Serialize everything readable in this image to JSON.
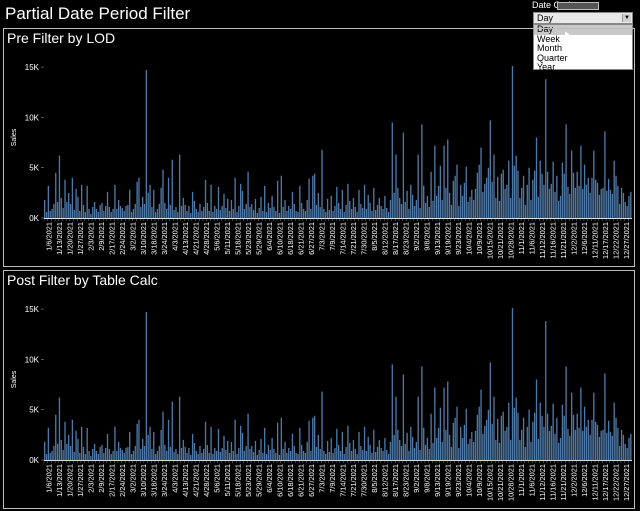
{
  "title": "Partial Date Period Filter",
  "date_granularity": {
    "label": "Date Grain",
    "selected": "Day",
    "options": [
      "Day",
      "Week",
      "Month",
      "Quarter",
      "Year"
    ]
  },
  "colors": {
    "bar": "#4e79a7",
    "background": "#000000",
    "text": "#ffffff"
  },
  "chart_data": [
    {
      "type": "bar",
      "title": "Pre Filter by LOD",
      "ylabel": "Sales",
      "ylim": [
        0,
        16000
      ],
      "yticks": [
        "0K",
        "5K",
        "10K",
        "15K"
      ],
      "x_tick_labels": [
        "1/6/2021",
        "1/13/2021",
        "1/20/2021",
        "1/27/2021",
        "2/3/2021",
        "2/9/2021",
        "2/17/2021",
        "2/24/2021",
        "3/2/2021",
        "3/10/2021",
        "3/18/2021",
        "3/24/2021",
        "4/3/2021",
        "4/13/2021",
        "4/21/2021",
        "4/28/2021",
        "5/6/2021",
        "5/11/2021",
        "5/18/2021",
        "5/23/2021",
        "5/29/2021",
        "6/4/2021",
        "6/10/2021",
        "6/18/2021",
        "6/21/2021",
        "6/27/2021",
        "7/3/2021",
        "7/9/2021",
        "7/14/2021",
        "7/21/2021",
        "7/30/2021",
        "8/5/2021",
        "8/12/2021",
        "8/17/2021",
        "8/23/2021",
        "9/2/2021",
        "9/8/2021",
        "9/13/2021",
        "9/19/2021",
        "9/23/2021",
        "10/4/2021",
        "10/9/2021",
        "10/15/2021",
        "10/21/2021",
        "10/28/2021",
        "11/1/2021",
        "11/6/2021",
        "11/12/2021",
        "11/16/2021",
        "11/21/2021",
        "12/2/2021",
        "12/6/2021",
        "12/11/2021",
        "12/17/2021",
        "12/22/2021",
        "12/27/2021"
      ],
      "values": [
        1800,
        600,
        3200,
        700,
        900,
        1400,
        4500,
        1600,
        6200,
        2000,
        1000,
        3800,
        1600,
        2500,
        1400,
        4000,
        800,
        2900,
        2100,
        700,
        3300,
        1300,
        600,
        3200,
        900,
        400,
        1100,
        1600,
        900,
        600,
        1300,
        1500,
        700,
        1200,
        2600,
        1100,
        600,
        900,
        3300,
        900,
        1800,
        1200,
        1000,
        700,
        1200,
        1300,
        2800,
        600,
        900,
        1400,
        3600,
        4000,
        1100,
        2100,
        1400,
        14700,
        2500,
        3300,
        1100,
        2800,
        600,
        900,
        1400,
        3000,
        4800,
        1500,
        900,
        4000,
        1300,
        5800,
        800,
        1100,
        600,
        6300,
        1200,
        2000,
        1300,
        700,
        1200,
        500,
        2600,
        1700,
        900,
        600,
        1400,
        700,
        1100,
        3800,
        1500,
        700,
        3300,
        600,
        1200,
        900,
        3100,
        800,
        1200,
        2400,
        1000,
        1900,
        700,
        1800,
        900,
        4000,
        600,
        1200,
        3400,
        2700,
        900,
        1400,
        4600,
        1100,
        1400,
        800,
        1900,
        500,
        1000,
        2100,
        700,
        3200,
        600,
        1500,
        1000,
        2200,
        1100,
        700,
        3700,
        500,
        4200,
        1100,
        1800,
        700,
        1200,
        900,
        2600,
        1400,
        700,
        600,
        3200,
        1500,
        900,
        700,
        1800,
        3900,
        900,
        4200,
        4400,
        1300,
        2500,
        1100,
        6800,
        900,
        600,
        1900,
        800,
        2200,
        700,
        1200,
        3100,
        1500,
        900,
        2800,
        600,
        1300,
        3400,
        1700,
        900,
        2000,
        1100,
        600,
        2800,
        1400,
        1000,
        3300,
        900,
        2300,
        1500,
        700,
        3000,
        800,
        1300,
        2000,
        1200,
        900,
        2200,
        1000,
        600,
        1800,
        9500,
        2500,
        6300,
        3000,
        2000,
        1400,
        8500,
        1600,
        2700,
        900,
        3300,
        2300,
        1200,
        1800,
        6300,
        1000,
        9300,
        3200,
        1500,
        2200,
        1100,
        4600,
        1700,
        7200,
        2200,
        3200,
        5200,
        1800,
        7200,
        3000,
        7800,
        2500,
        1300,
        3700,
        4200,
        5300,
        1200,
        3300,
        2200,
        3500,
        5100,
        1600,
        2100,
        2800,
        1800,
        2900,
        4500,
        5300,
        7000,
        2600,
        3400,
        4000,
        5000,
        9700,
        3600,
        6300,
        2000,
        4100,
        1700,
        4400,
        4800,
        2900,
        3300,
        5700,
        2000,
        15100,
        5200,
        6200,
        4700,
        2000,
        3000,
        4200,
        1300,
        3300,
        5000,
        1800,
        3800,
        4700,
        8000,
        2100,
        5700,
        4400,
        3300,
        13800,
        4600,
        2900,
        3400,
        5600,
        2600,
        4200,
        1700,
        2200,
        5500,
        4400,
        9300,
        3100,
        2400,
        6700,
        4500,
        3000,
        4600,
        3200,
        7200,
        2900,
        5300,
        3300,
        4000,
        2500,
        4000,
        6700,
        3800,
        3500,
        2300,
        2900,
        3000,
        8600,
        2700,
        3900,
        2800,
        2400,
        5700,
        4200,
        3200,
        1400,
        3000,
        2500,
        1600,
        1200,
        2200,
        2600
      ]
    },
    {
      "type": "bar",
      "title": "Post Filter by Table Calc",
      "ylabel": "Sales",
      "ylim": [
        0,
        16000
      ],
      "yticks": [
        "0K",
        "5K",
        "10K",
        "15K"
      ],
      "x_tick_labels": [
        "1/6/2021",
        "1/13/2021",
        "1/20/2021",
        "1/27/2021",
        "2/3/2021",
        "2/9/2021",
        "2/17/2021",
        "2/24/2021",
        "3/2/2021",
        "3/10/2021",
        "3/18/2021",
        "3/24/2021",
        "4/3/2021",
        "4/13/2021",
        "4/21/2021",
        "4/28/2021",
        "5/6/2021",
        "5/11/2021",
        "5/18/2021",
        "5/23/2021",
        "5/29/2021",
        "6/4/2021",
        "6/10/2021",
        "6/18/2021",
        "6/21/2021",
        "6/27/2021",
        "7/3/2021",
        "7/9/2021",
        "7/14/2021",
        "7/21/2021",
        "7/30/2021",
        "8/5/2021",
        "8/12/2021",
        "8/17/2021",
        "8/23/2021",
        "9/2/2021",
        "9/8/2021",
        "9/13/2021",
        "9/19/2021",
        "9/23/2021",
        "10/4/2021",
        "10/9/2021",
        "10/15/2021",
        "10/21/2021",
        "10/28/2021",
        "11/1/2021",
        "11/6/2021",
        "11/12/2021",
        "11/16/2021",
        "11/21/2021",
        "12/2/2021",
        "12/6/2021",
        "12/11/2021",
        "12/17/2021",
        "12/22/2021",
        "12/27/2021"
      ],
      "values": [
        1800,
        600,
        3200,
        700,
        900,
        1400,
        4500,
        1600,
        6200,
        2000,
        1000,
        3800,
        1600,
        2500,
        1400,
        4000,
        800,
        2900,
        2100,
        700,
        3300,
        1300,
        600,
        3200,
        900,
        400,
        1100,
        1600,
        900,
        600,
        1300,
        1500,
        700,
        1200,
        2600,
        1100,
        600,
        900,
        3300,
        900,
        1800,
        1200,
        1000,
        700,
        1200,
        1300,
        2800,
        600,
        900,
        1400,
        3600,
        4000,
        1100,
        2100,
        1400,
        14700,
        2500,
        3300,
        1100,
        2800,
        600,
        900,
        1400,
        3000,
        4800,
        1500,
        900,
        4000,
        1300,
        5800,
        800,
        1100,
        600,
        6300,
        1200,
        2000,
        1300,
        700,
        1200,
        500,
        2600,
        1700,
        900,
        600,
        1400,
        700,
        1100,
        3800,
        1500,
        700,
        3300,
        600,
        1200,
        900,
        3100,
        800,
        1200,
        2400,
        1000,
        1900,
        700,
        1800,
        900,
        4000,
        600,
        1200,
        3400,
        2700,
        900,
        1400,
        4600,
        1100,
        1400,
        800,
        1900,
        500,
        1000,
        2100,
        700,
        3200,
        600,
        1500,
        1000,
        2200,
        1100,
        700,
        3700,
        500,
        4200,
        1100,
        1800,
        700,
        1200,
        900,
        2600,
        1400,
        700,
        600,
        3200,
        1500,
        900,
        700,
        1800,
        3900,
        900,
        4200,
        4400,
        1300,
        2500,
        1100,
        6800,
        900,
        600,
        1900,
        800,
        2200,
        700,
        1200,
        3100,
        1500,
        900,
        2800,
        600,
        1300,
        3400,
        1700,
        900,
        2000,
        1100,
        600,
        2800,
        1400,
        1000,
        3300,
        900,
        2300,
        1500,
        700,
        3000,
        800,
        1300,
        2000,
        1200,
        900,
        2200,
        1000,
        600,
        1800,
        9500,
        2500,
        6300,
        3000,
        2000,
        1400,
        8500,
        1600,
        2700,
        900,
        3300,
        2300,
        1200,
        1800,
        6300,
        1000,
        9300,
        3200,
        1500,
        2200,
        1100,
        4600,
        1700,
        7200,
        2200,
        3200,
        5200,
        1800,
        7200,
        3000,
        7800,
        2500,
        1300,
        3700,
        4200,
        5300,
        1200,
        3300,
        2200,
        3500,
        5100,
        1600,
        2100,
        2800,
        1800,
        2900,
        4500,
        5300,
        7000,
        2600,
        3400,
        4000,
        5000,
        9700,
        3600,
        6300,
        2000,
        4100,
        1700,
        4400,
        4800,
        2900,
        3300,
        5700,
        2000,
        15100,
        5200,
        6200,
        4700,
        2000,
        3000,
        4200,
        1300,
        3300,
        5000,
        1800,
        3800,
        4700,
        8000,
        2100,
        5700,
        4400,
        3300,
        13800,
        4600,
        2900,
        3400,
        5600,
        2600,
        4200,
        1700,
        2200,
        5500,
        4400,
        9300,
        3100,
        2400,
        6700,
        4500,
        3000,
        4600,
        3200,
        7200,
        2900,
        5300,
        3300,
        4000,
        2500,
        4000,
        6700,
        3800,
        3500,
        2300,
        2900,
        3000,
        8600,
        2700,
        3900,
        2800,
        2400,
        5700,
        4200,
        3200,
        1400,
        3000,
        2500,
        1600,
        1200,
        2200,
        2600
      ]
    }
  ]
}
